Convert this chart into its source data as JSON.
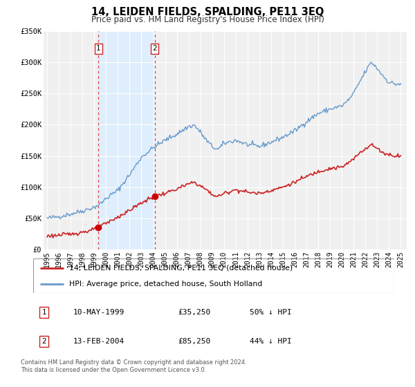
{
  "title": "14, LEIDEN FIELDS, SPALDING, PE11 3EQ",
  "subtitle": "Price paid vs. HM Land Registry's House Price Index (HPI)",
  "legend_line1": "14, LEIDEN FIELDS, SPALDING, PE11 3EQ (detached house)",
  "legend_line2": "HPI: Average price, detached house, South Holland",
  "sale1_date": "10-MAY-1999",
  "sale1_price": "£35,250",
  "sale1_hpi": "50% ↓ HPI",
  "sale1_date_num": 1999.36,
  "sale1_price_num": 35250,
  "sale2_date": "13-FEB-2004",
  "sale2_price": "£85,250",
  "sale2_hpi": "44% ↓ HPI",
  "sale2_date_num": 2004.12,
  "sale2_price_num": 85250,
  "footer": "Contains HM Land Registry data © Crown copyright and database right 2024.\nThis data is licensed under the Open Government Licence v3.0.",
  "hpi_color": "#6699cc",
  "price_color": "#cc2222",
  "sale_dot_color": "#cc0000",
  "background_color": "#ffffff",
  "plot_bg_color": "#f0f0f0",
  "shade_color": "#ddeeff",
  "vline_color": "#dd4444",
  "grid_color": "#ffffff",
  "border_color": "#999999",
  "ylim": [
    0,
    350000
  ],
  "yticks": [
    0,
    50000,
    100000,
    150000,
    200000,
    250000,
    300000,
    350000
  ],
  "ytick_labels": [
    "£0",
    "£50K",
    "£100K",
    "£150K",
    "£200K",
    "£250K",
    "£300K",
    "£350K"
  ],
  "xlim_start": 1994.7,
  "xlim_end": 2025.5,
  "hpi_anchors_t": [
    1995.0,
    1996.0,
    1997.0,
    1998.0,
    1999.0,
    1999.5,
    2000.0,
    2001.0,
    2002.0,
    2003.0,
    2004.0,
    2005.0,
    2006.0,
    2007.0,
    2007.5,
    2008.0,
    2008.5,
    2009.0,
    2009.5,
    2010.0,
    2011.0,
    2012.0,
    2013.0,
    2014.0,
    2015.0,
    2016.0,
    2017.0,
    2018.0,
    2019.0,
    2020.0,
    2020.5,
    2021.0,
    2021.5,
    2022.0,
    2022.5,
    2023.0,
    2023.5,
    2024.0,
    2024.5,
    2025.0
  ],
  "hpi_anchors_p": [
    50000,
    53000,
    57000,
    62000,
    68000,
    73000,
    82000,
    95000,
    120000,
    148000,
    163000,
    175000,
    185000,
    197000,
    199000,
    188000,
    175000,
    165000,
    160000,
    170000,
    175000,
    168000,
    165000,
    172000,
    180000,
    190000,
    205000,
    218000,
    225000,
    230000,
    238000,
    250000,
    268000,
    285000,
    300000,
    290000,
    278000,
    268000,
    265000,
    265000
  ],
  "price_anchors_t": [
    1995.0,
    1996.0,
    1997.0,
    1998.0,
    1999.0,
    1999.36,
    2000.0,
    2001.0,
    2002.0,
    2003.0,
    2004.12,
    2005.0,
    2006.0,
    2007.0,
    2007.5,
    2008.0,
    2008.5,
    2009.0,
    2009.5,
    2010.0,
    2011.0,
    2012.0,
    2013.0,
    2014.0,
    2015.0,
    2016.0,
    2017.0,
    2018.0,
    2019.0,
    2020.0,
    2020.5,
    2021.0,
    2021.5,
    2022.0,
    2022.5,
    2023.0,
    2023.5,
    2024.0,
    2024.5,
    2025.0
  ],
  "price_anchors_p": [
    22000,
    23000,
    25000,
    28000,
    32000,
    35250,
    42000,
    52000,
    63000,
    75000,
    85250,
    90000,
    97000,
    105000,
    108000,
    102000,
    96000,
    88000,
    85000,
    90000,
    96000,
    92000,
    90000,
    95000,
    100000,
    108000,
    117000,
    125000,
    130000,
    132000,
    138000,
    145000,
    155000,
    162000,
    168000,
    162000,
    155000,
    152000,
    150000,
    151000
  ]
}
